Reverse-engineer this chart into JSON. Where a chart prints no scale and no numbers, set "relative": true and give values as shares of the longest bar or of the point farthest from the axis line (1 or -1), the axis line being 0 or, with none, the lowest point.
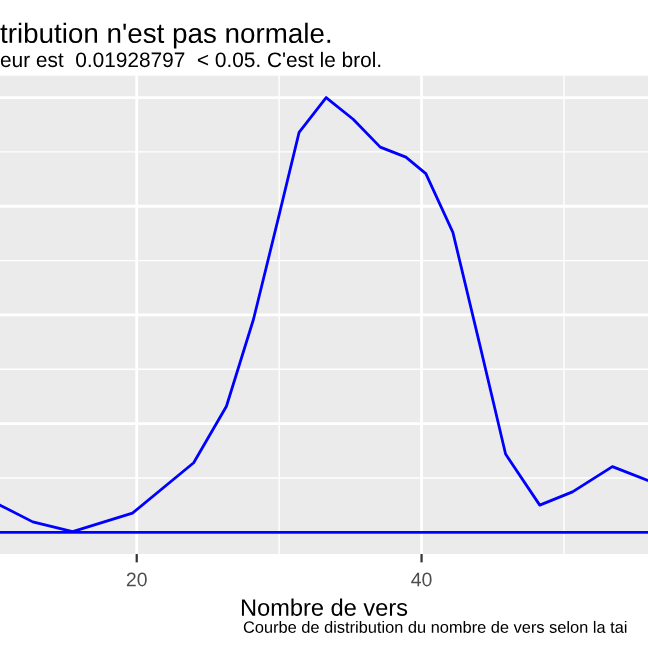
{
  "chart_data": {
    "type": "line",
    "title": "tribution n'est pas normale.",
    "subtitle": "eur est  0.01928797  < 0.05. C'est le brol.",
    "xlabel": "Nombre de vers",
    "annotations": [
      "Courbe de distribution du nombre de vers selon la tai"
    ],
    "relative": true,
    "x": [
      10.4,
      12.7,
      15.5,
      19.7,
      24.0,
      26.3,
      28.2,
      30.0,
      31.4,
      33.3,
      35.2,
      37.1,
      38.9,
      40.3,
      42.2,
      44.1,
      45.9,
      48.3,
      50.6,
      53.4,
      55.9
    ],
    "series": [
      {
        "color": "#0000ff",
        "values": [
          0.0625,
          0.024,
          0.0015,
          0.044,
          0.16,
          0.29,
          0.49,
          0.73,
          0.92,
          1.0,
          0.95,
          0.886,
          0.863,
          0.825,
          0.69,
          0.43,
          0.18,
          0.0625,
          0.093,
          0.151,
          0.119
        ]
      }
    ],
    "xlim": [
      10.4,
      55.9
    ],
    "xticks": [
      20,
      40
    ],
    "ref_lines": [
      {
        "axis": "y",
        "value": 0,
        "color": "#0000ff"
      }
    ],
    "grid": true,
    "tick_labels": "x",
    "legend": false,
    "marker": "none",
    "line_style": "solid"
  }
}
